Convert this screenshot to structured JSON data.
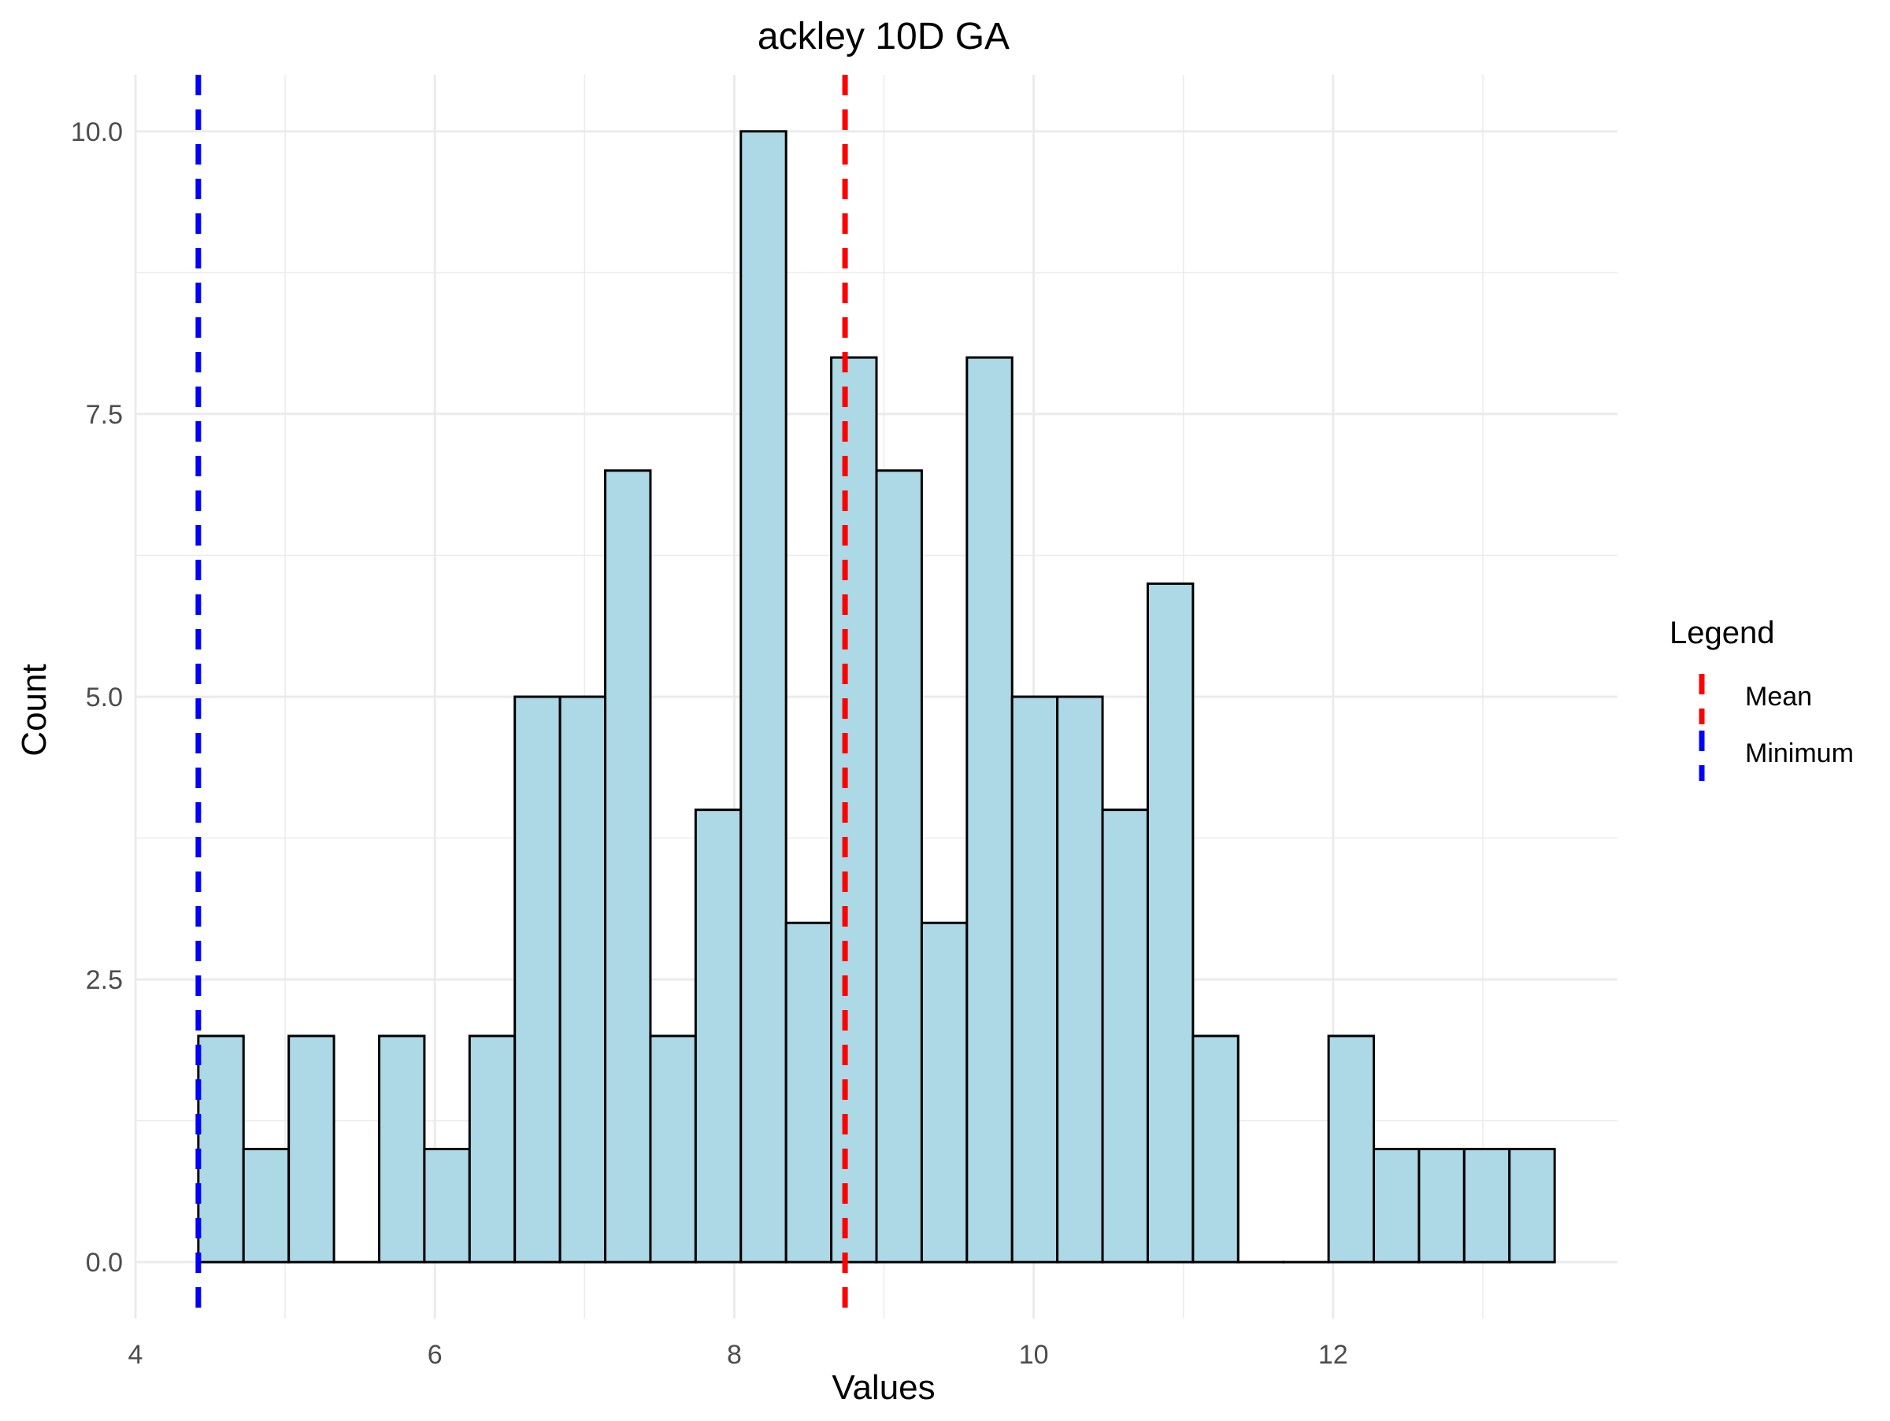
{
  "chart_data": {
    "type": "bar",
    "title": "ackley 10D GA",
    "xlabel": "Values",
    "ylabel": "Count",
    "xlim": [
      4.0,
      13.9
    ],
    "ylim": [
      -0.5,
      10.5
    ],
    "x_ticks": [
      4,
      6,
      8,
      10,
      12
    ],
    "x_tick_labels": [
      "4",
      "6",
      "8",
      "10",
      "12"
    ],
    "y_ticks": [
      0,
      2.5,
      5,
      7.5,
      10
    ],
    "y_tick_labels": [
      "0.0",
      "2.5",
      "5.0",
      "7.5",
      "10.0"
    ],
    "grid": true,
    "bar_fill": "#ADD8E6",
    "bar_outline": "#000000",
    "bins": {
      "start": 4.42,
      "width": 0.302,
      "counts": [
        2,
        1,
        2,
        0,
        2,
        1,
        2,
        5,
        5,
        7,
        2,
        4,
        10,
        3,
        8,
        7,
        3,
        8,
        5,
        5,
        4,
        6,
        2,
        0,
        0,
        2,
        1,
        1,
        1,
        1
      ]
    },
    "reference_lines": [
      {
        "name": "Mean",
        "x": 8.74,
        "color": "#FF0000",
        "style": "dashed"
      },
      {
        "name": "Minimum",
        "x": 4.42,
        "color": "#0000FF",
        "style": "dashed"
      }
    ],
    "legend": {
      "title": "Legend",
      "position": "right",
      "entries": [
        {
          "label": "Mean",
          "color": "#FF0000"
        },
        {
          "label": "Minimum",
          "color": "#0000FF"
        }
      ]
    }
  }
}
